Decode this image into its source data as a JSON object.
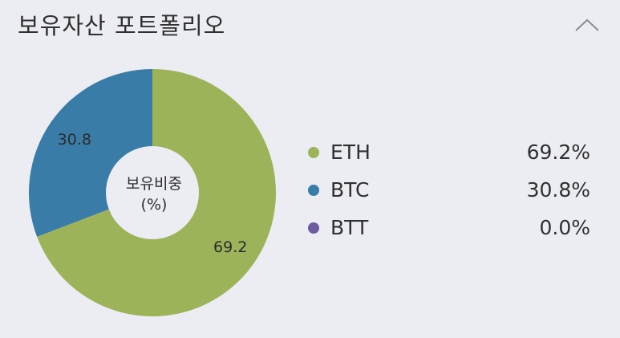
{
  "header": {
    "title": "보유자산 포트폴리오"
  },
  "colors": {
    "eth": "#9cb35a",
    "btc": "#3a7ca8",
    "btt": "#6e5aa0",
    "background": "#ecedf2"
  },
  "chart_data": {
    "type": "pie",
    "center_label_line1": "보유비중",
    "center_label_line2": "(%)",
    "slices": [
      {
        "label": "ETH",
        "value": 69.2,
        "data_label": "69.2"
      },
      {
        "label": "BTC",
        "value": 30.8,
        "data_label": "30.8"
      },
      {
        "label": "BTT",
        "value": 0.0,
        "data_label": ""
      }
    ]
  },
  "legend": [
    {
      "name": "ETH",
      "pct": "69.2%"
    },
    {
      "name": "BTC",
      "pct": "30.8%"
    },
    {
      "name": "BTT",
      "pct": "0.0%"
    }
  ],
  "icons": {
    "collapse": "chevron-up-icon"
  }
}
